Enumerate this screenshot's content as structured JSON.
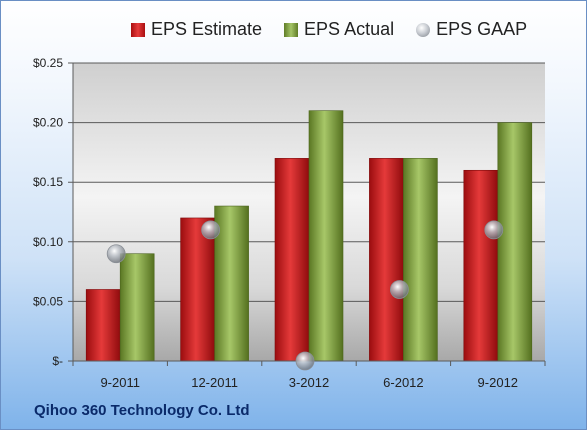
{
  "footer": {
    "company": "Qihoo 360 Technology Co. Ltd"
  },
  "colors": {
    "estimate": "#c0181a",
    "actual": "#8aab4b",
    "gaap": "#a9adb3"
  },
  "chart_data": {
    "type": "bar",
    "categories": [
      "9-2011",
      "12-2011",
      "3-2012",
      "6-2012",
      "9-2012"
    ],
    "series": [
      {
        "name": "EPS Estimate",
        "type": "bar",
        "values": [
          0.06,
          0.12,
          0.17,
          0.17,
          0.16
        ]
      },
      {
        "name": "EPS Actual",
        "type": "bar",
        "values": [
          0.09,
          0.13,
          0.21,
          0.17,
          0.2
        ]
      },
      {
        "name": "EPS GAAP",
        "type": "scatter",
        "values": [
          0.09,
          0.11,
          0.0,
          0.06,
          0.11
        ]
      }
    ],
    "yticks": [
      0,
      0.05,
      0.1,
      0.15,
      0.2,
      0.25
    ],
    "ytick_labels": [
      "$-",
      "$0.05",
      "$0.10",
      "$0.15",
      "$0.20",
      "$0.25"
    ],
    "ylim": [
      0,
      0.25
    ],
    "grid": true,
    "legend_position": "top"
  }
}
